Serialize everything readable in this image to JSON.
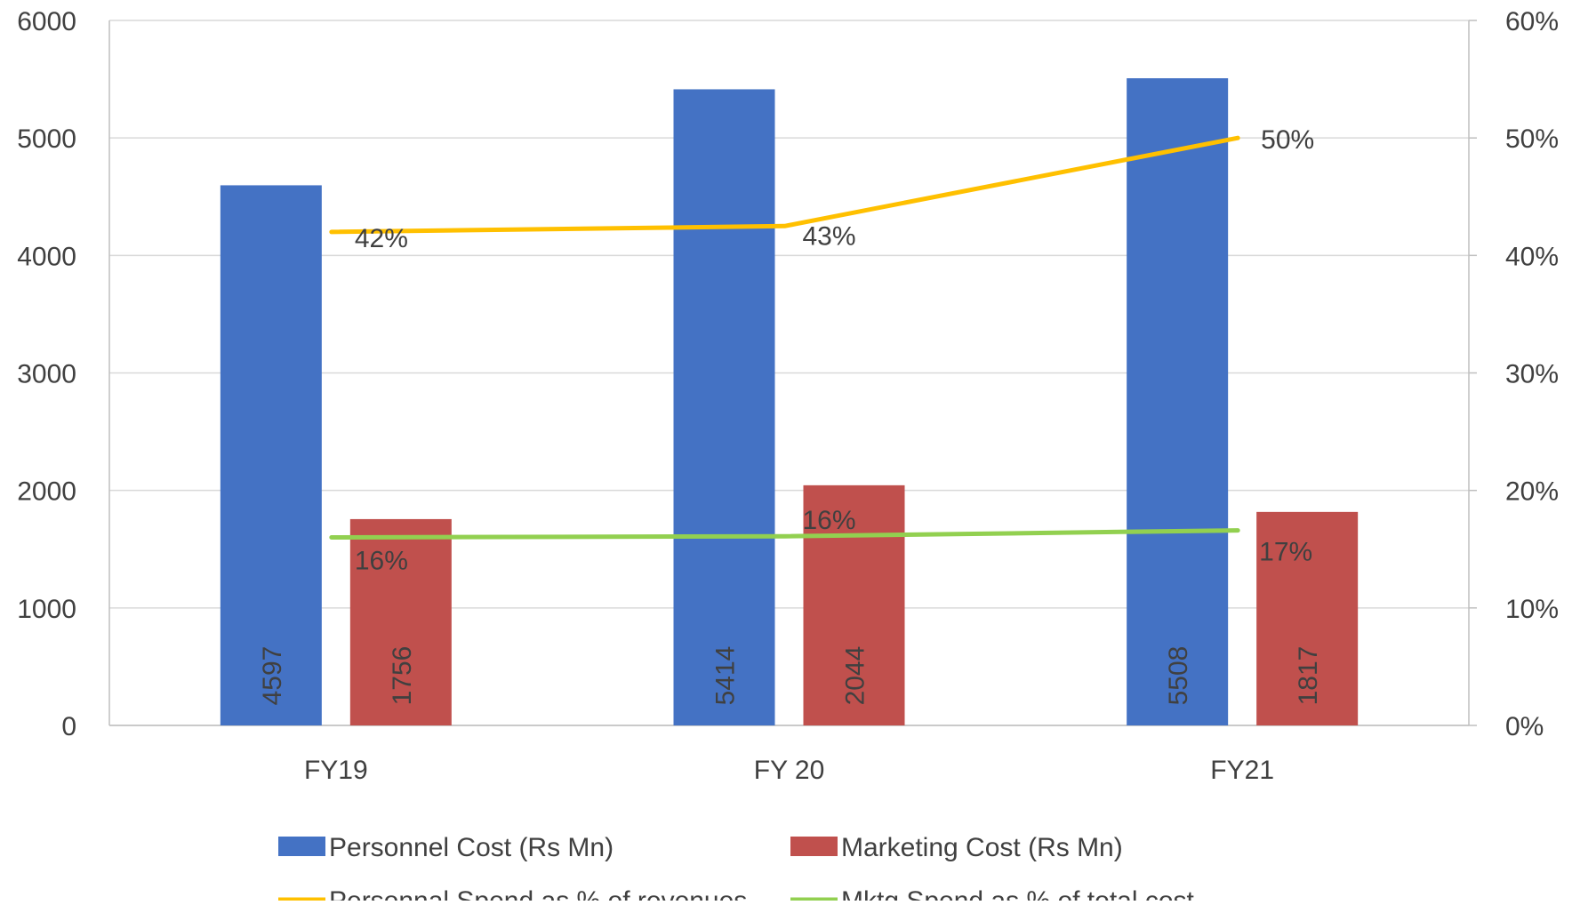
{
  "chart_data": {
    "type": "bar",
    "categories": [
      "FY19",
      "FY 20",
      "FY21"
    ],
    "y_left": {
      "ylim": [
        0,
        6000
      ],
      "ticks": [
        "0",
        "1000",
        "2000",
        "3000",
        "4000",
        "5000",
        "6000"
      ]
    },
    "y_right": {
      "ylim": [
        0,
        0.6
      ],
      "ticks": [
        "0%",
        "10%",
        "20%",
        "30%",
        "40%",
        "50%",
        "60%"
      ]
    },
    "grid": true,
    "series": [
      {
        "name": "Personnel Cost (Rs Mn)",
        "type": "bar",
        "axis": "left",
        "color": "#4472C4",
        "values": [
          4597,
          5414,
          5508
        ],
        "labels": [
          "4597",
          "5414",
          "5508"
        ]
      },
      {
        "name": "Marketing Cost (Rs Mn)",
        "type": "bar",
        "axis": "left",
        "color": "#C0504D",
        "values": [
          1756,
          2044,
          1817
        ],
        "labels": [
          "1756",
          "2044",
          "1817"
        ]
      },
      {
        "name": "Personnal Spend as % of revenues",
        "type": "line",
        "axis": "right",
        "color": "#FFC000",
        "values": [
          0.42,
          0.425,
          0.5
        ],
        "labels": [
          "42%",
          "43%",
          "50%"
        ]
      },
      {
        "name": "Mktg  Spend as % of total cost",
        "type": "line",
        "axis": "right",
        "color": "#92D050",
        "values": [
          0.16,
          0.161,
          0.166
        ],
        "labels": [
          "16%",
          "16%",
          "17%"
        ]
      }
    ],
    "legend_position": "bottom"
  }
}
